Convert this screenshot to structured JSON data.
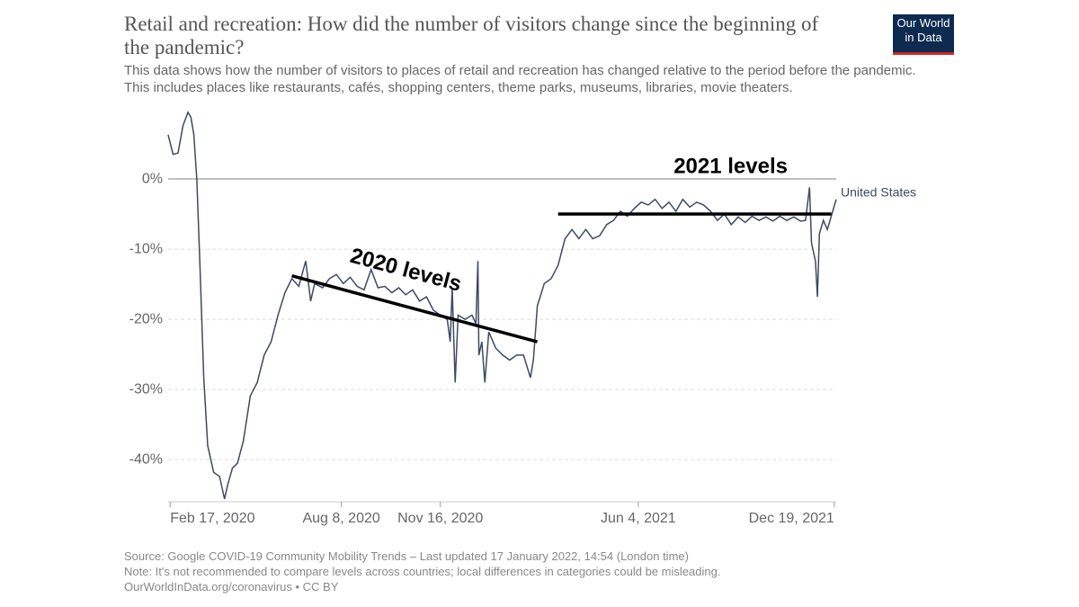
{
  "chart_data": {
    "type": "line",
    "title": "Retail and recreation: How did the number of visitors change since the beginning of the pandemic?",
    "subtitle": "This data shows how the number of visitors to places of retail and recreation has changed relative to the period before the pandemic. This includes places like restaurants, cafés, shopping centers, theme parks, museums, libraries, movie theaters.",
    "logo": "Our World in Data",
    "source": "Source: Google COVID-19 Community Mobility Trends – Last updated 17 January 2022, 14:54 (London time)",
    "note": "Note: It's not recommended to compare levels across countries; local differences in categories could be misleading.",
    "credit": "OurWorldInData.org/coronavirus • CC BY",
    "x": [
      "2020-02-15",
      "2020-02-20",
      "2020-02-25",
      "2020-03-01",
      "2020-03-06",
      "2020-03-09",
      "2020-03-12",
      "2020-03-15",
      "2020-03-18",
      "2020-03-22",
      "2020-03-26",
      "2020-04-01",
      "2020-04-07",
      "2020-04-12",
      "2020-04-15",
      "2020-04-20",
      "2020-04-25",
      "2020-05-01",
      "2020-05-08",
      "2020-05-15",
      "2020-05-22",
      "2020-05-29",
      "2020-06-05",
      "2020-06-12",
      "2020-06-19",
      "2020-06-26",
      "2020-07-03",
      "2020-07-08",
      "2020-07-12",
      "2020-07-20",
      "2020-07-27",
      "2020-08-03",
      "2020-08-10",
      "2020-08-17",
      "2020-08-24",
      "2020-08-31",
      "2020-09-07",
      "2020-09-14",
      "2020-09-21",
      "2020-09-28",
      "2020-10-05",
      "2020-10-12",
      "2020-10-19",
      "2020-10-26",
      "2020-11-02",
      "2020-11-09",
      "2020-11-16",
      "2020-11-23",
      "2020-11-26",
      "2020-11-28",
      "2020-12-01",
      "2020-12-04",
      "2020-12-11",
      "2020-12-18",
      "2020-12-22",
      "2020-12-24",
      "2020-12-25",
      "2020-12-28",
      "2020-12-31",
      "2021-01-04",
      "2021-01-11",
      "2021-01-18",
      "2021-01-25",
      "2021-02-01",
      "2021-02-08",
      "2021-02-15",
      "2021-02-18",
      "2021-02-22",
      "2021-03-01",
      "2021-03-08",
      "2021-03-15",
      "2021-03-22",
      "2021-03-29",
      "2021-04-05",
      "2021-04-12",
      "2021-04-19",
      "2021-04-26",
      "2021-05-03",
      "2021-05-10",
      "2021-05-17",
      "2021-05-24",
      "2021-05-31",
      "2021-06-07",
      "2021-06-14",
      "2021-06-21",
      "2021-06-28",
      "2021-07-05",
      "2021-07-12",
      "2021-07-19",
      "2021-07-26",
      "2021-08-02",
      "2021-08-09",
      "2021-08-16",
      "2021-08-23",
      "2021-08-30",
      "2021-09-06",
      "2021-09-13",
      "2021-09-20",
      "2021-09-27",
      "2021-10-04",
      "2021-10-11",
      "2021-10-18",
      "2021-10-25",
      "2021-11-01",
      "2021-11-08",
      "2021-11-15",
      "2021-11-20",
      "2021-11-24",
      "2021-11-26",
      "2021-11-30",
      "2021-12-02",
      "2021-12-04",
      "2021-12-08",
      "2021-12-12",
      "2021-12-16",
      "2021-12-21"
    ],
    "series": [
      {
        "name": "United States",
        "color": "#3c4a63",
        "values": [
          6.3,
          3.5,
          3.7,
          7.6,
          9.5,
          8.8,
          6.3,
          -0.1,
          -11.7,
          -28.3,
          -38,
          -41.8,
          -42.4,
          -45.6,
          -43.7,
          -41.2,
          -40.5,
          -37.3,
          -30.9,
          -29,
          -25.1,
          -23.2,
          -19.4,
          -16.2,
          -14.2,
          -15.3,
          -11.7,
          -17.4,
          -14.9,
          -15.5,
          -14.2,
          -13.6,
          -14.9,
          -14,
          -15.3,
          -15.8,
          -12.9,
          -15.5,
          -15.3,
          -16.2,
          -15.5,
          -16.5,
          -15.8,
          -17.4,
          -16.8,
          -18.7,
          -19.4,
          -20,
          -23.2,
          -15.5,
          -29,
          -19.4,
          -20,
          -19.4,
          -20.6,
          -11.7,
          -25.1,
          -23.2,
          -29,
          -21.8,
          -24.1,
          -25.1,
          -25.8,
          -25.1,
          -25.1,
          -28.3,
          -25.8,
          -18.1,
          -14.9,
          -14.2,
          -12.3,
          -8.5,
          -7.2,
          -8.5,
          -7.2,
          -8.5,
          -8.1,
          -6.5,
          -5.9,
          -4.6,
          -5.3,
          -4.2,
          -3.3,
          -3.7,
          -2.9,
          -4.2,
          -3.3,
          -4.6,
          -2.9,
          -4,
          -3.3,
          -3.7,
          -4.6,
          -5.9,
          -5,
          -6.5,
          -5.4,
          -6.2,
          -5.3,
          -5.9,
          -5.4,
          -6,
          -5.3,
          -5.9,
          -5.4,
          -6,
          -5.9,
          -1.2,
          -9.1,
          -11.7,
          -16.8,
          -7.8,
          -5.9,
          -7.2,
          -5.3,
          -2.9
        ]
      }
    ],
    "xlim": [
      "2020-02-15",
      "2021-12-21"
    ],
    "xticks": [
      {
        "value": "2020-02-17",
        "label": "Feb 17, 2020"
      },
      {
        "value": "2020-08-08",
        "label": "Aug 8, 2020"
      },
      {
        "value": "2020-11-16",
        "label": "Nov 16, 2020"
      },
      {
        "value": "2021-06-04",
        "label": "Jun 4, 2021"
      },
      {
        "value": "2021-12-19",
        "label": "Dec 19, 2021"
      }
    ],
    "ylim": [
      -46,
      10
    ],
    "yticks": [
      {
        "value": 0,
        "label": "0%"
      },
      {
        "value": -10,
        "label": "-10%"
      },
      {
        "value": -20,
        "label": "-20%"
      },
      {
        "value": -30,
        "label": "-30%"
      },
      {
        "value": -40,
        "label": "-40%"
      }
    ],
    "grid": true,
    "annotations": [
      {
        "text": "2020 levels",
        "x": [
          "2020-06-19",
          "2021-02-22"
        ],
        "y": [
          -13.8,
          -23.2
        ]
      },
      {
        "text": "2021 levels",
        "x": [
          "2021-03-15",
          "2021-12-16"
        ],
        "y": [
          -5,
          -5
        ]
      }
    ]
  }
}
